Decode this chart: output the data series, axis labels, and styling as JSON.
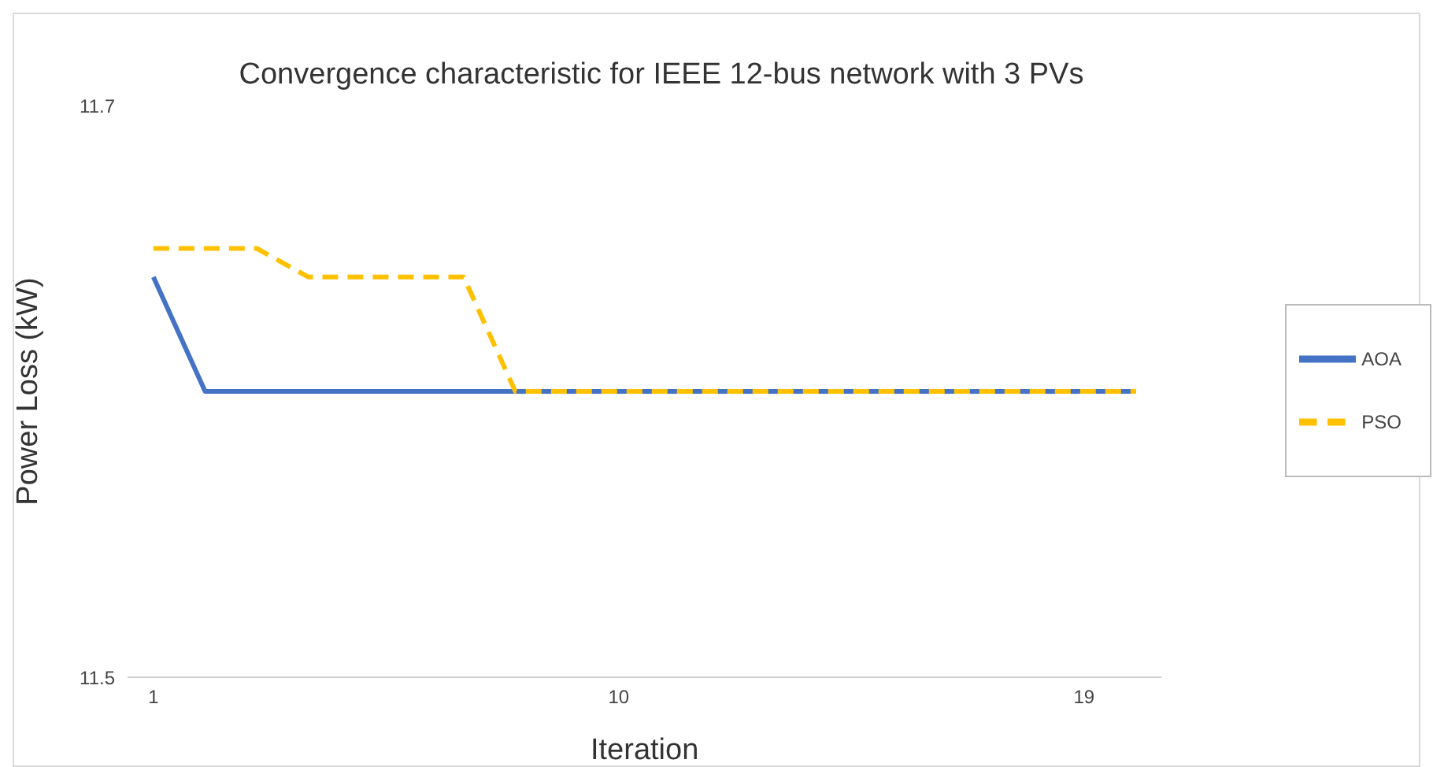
{
  "chart_data": {
    "type": "line",
    "title": "Convergence characteristic for IEEE 12-bus network with 3 PVs",
    "xlabel": "Iteration",
    "ylabel": "Power Loss (kW)",
    "x": [
      1,
      2,
      3,
      4,
      5,
      6,
      7,
      8,
      9,
      10,
      11,
      12,
      13,
      14,
      15,
      16,
      17,
      18,
      19,
      20
    ],
    "series": [
      {
        "name": "AOA",
        "color": "#4472c4",
        "line_style": "solid",
        "values": [
          11.64,
          11.6,
          11.6,
          11.6,
          11.6,
          11.6,
          11.6,
          11.6,
          11.6,
          11.6,
          11.6,
          11.6,
          11.6,
          11.6,
          11.6,
          11.6,
          11.6,
          11.6,
          11.6,
          11.6
        ]
      },
      {
        "name": "PSO",
        "color": "#ffc000",
        "line_style": "dashed",
        "values": [
          11.65,
          11.65,
          11.65,
          11.64,
          11.64,
          11.64,
          11.64,
          11.6,
          11.6,
          11.6,
          11.6,
          11.6,
          11.6,
          11.6,
          11.6,
          11.6,
          11.6,
          11.6,
          11.6,
          11.6
        ]
      }
    ],
    "xlim": [
      0.5,
      20.5
    ],
    "xticks": [
      1,
      10,
      19
    ],
    "ylim": [
      11.5,
      11.7
    ],
    "yticks": [
      11.5,
      11.7
    ],
    "legend": "right",
    "marker": "none"
  }
}
